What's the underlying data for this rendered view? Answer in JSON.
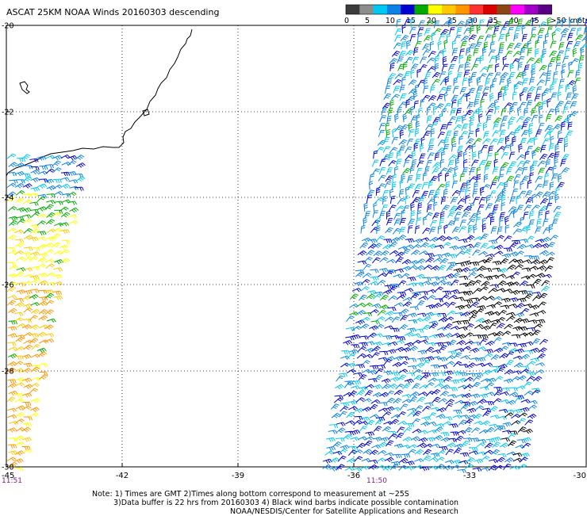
{
  "title": "ASCAT 25KM NOAA Winds 20160303 descending",
  "colorbar": {
    "colors": [
      "#3c3c3c",
      "#8c8c8c",
      "#00c8f0",
      "#0a82e6",
      "#0000d2",
      "#00aa00",
      "#ffff00",
      "#ffc800",
      "#ff9600",
      "#ff3232",
      "#dc0000",
      "#8b4513",
      "#ff00ff",
      "#a000c8",
      "#5a0087"
    ],
    "labels": [
      "0",
      "5",
      "10",
      "15",
      "20",
      "25",
      "30",
      "35",
      "40",
      "45",
      ">50 knots"
    ]
  },
  "lat_labels": [
    "-20",
    "-22",
    "-24",
    "-26",
    "-28",
    "-30"
  ],
  "lon_labels": [
    "-45",
    "-42",
    "-39",
    "-36",
    "-33",
    "-30"
  ],
  "time_labels": [
    "11:51",
    "11:50"
  ],
  "notes": [
    "Note: 1) Times are GMT 2)Times along bottom correspond to measurement at ~25S",
    "3)Data buffer is 22 hrs from 20160303 4) Black wind barbs indicate possible contamination",
    "NOAA/NESDIS/Center for Satellite Applications and Research"
  ]
}
